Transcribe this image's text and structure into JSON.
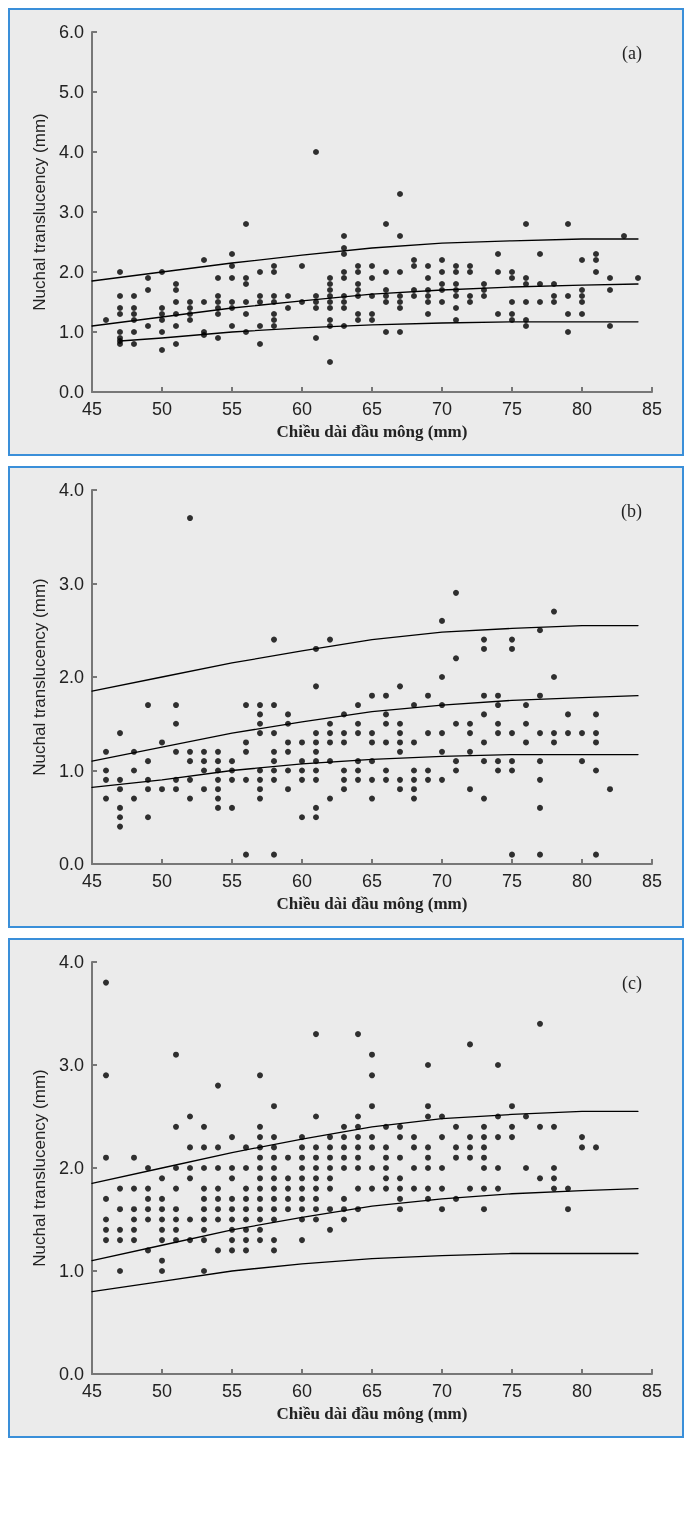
{
  "chart_data": [
    {
      "type": "scatter",
      "annotations": [
        "(a)"
      ],
      "xlabel": "Chiều dài đầu mông (mm)",
      "ylabel": "Nuchal translucency (mm)",
      "xlim": [
        45,
        85
      ],
      "xticks": [
        45,
        50,
        55,
        60,
        65,
        70,
        75,
        80,
        85
      ],
      "ylim": [
        0,
        6
      ],
      "yticks": [
        {
          "value": 0,
          "label": "0.0"
        },
        {
          "value": 1,
          "label": "1.0"
        },
        {
          "value": 2,
          "label": "2.0"
        },
        {
          "value": 3,
          "label": "3.0"
        },
        {
          "value": 4,
          "label": "4.0"
        },
        {
          "value": 5,
          "label": "5.0"
        },
        {
          "value": 6,
          "label": "6.0"
        }
      ],
      "grid": false,
      "marker": "circle",
      "series": [
        {
          "color": "#000000",
          "x": [
            46,
            47,
            47,
            47,
            47,
            47,
            47,
            47,
            47,
            48,
            48,
            48,
            48,
            48,
            48,
            49,
            49,
            49,
            50,
            50,
            50,
            50,
            50,
            50,
            51,
            51,
            51,
            51,
            51,
            51,
            52,
            52,
            52,
            52,
            53,
            53,
            53,
            53,
            54,
            54,
            54,
            54,
            54,
            54,
            55,
            55,
            55,
            55,
            55,
            55,
            56,
            56,
            56,
            56,
            56,
            56,
            57,
            57,
            57,
            57,
            57,
            58,
            58,
            58,
            58,
            58,
            58,
            58,
            59,
            59,
            60,
            60,
            61,
            61,
            61,
            61,
            61,
            62,
            62,
            62,
            62,
            62,
            62,
            62,
            62,
            62,
            63,
            63,
            63,
            63,
            63,
            63,
            63,
            63,
            63,
            64,
            64,
            64,
            64,
            64,
            64,
            64,
            65,
            65,
            65,
            65,
            65,
            66,
            66,
            66,
            66,
            66,
            66,
            67,
            67,
            67,
            67,
            67,
            67,
            67,
            68,
            68,
            68,
            68,
            69,
            69,
            69,
            69,
            69,
            69,
            70,
            70,
            70,
            70,
            70,
            71,
            71,
            71,
            71,
            71,
            71,
            71,
            72,
            72,
            72,
            72,
            73,
            73,
            73,
            74,
            74,
            74,
            75,
            75,
            75,
            75,
            75,
            76,
            76,
            76,
            76,
            76,
            76,
            77,
            77,
            77,
            78,
            78,
            78,
            79,
            79,
            79,
            79,
            80,
            80,
            80,
            80,
            80,
            81,
            81,
            81,
            82,
            82,
            82,
            83,
            84
          ],
          "values": [
            1.2,
            2.0,
            1.6,
            1.4,
            1.3,
            1.0,
            0.9,
            0.85,
            0.8,
            1.6,
            1.4,
            1.3,
            1.2,
            1.0,
            0.8,
            1.9,
            1.7,
            1.1,
            2.0,
            1.4,
            1.3,
            1.2,
            1.0,
            0.7,
            1.8,
            1.7,
            1.5,
            1.3,
            1.1,
            0.8,
            1.5,
            1.4,
            1.3,
            1.2,
            2.2,
            1.5,
            1.0,
            0.95,
            1.9,
            1.6,
            1.5,
            1.4,
            1.3,
            0.9,
            2.3,
            2.1,
            1.9,
            1.5,
            1.4,
            1.1,
            2.8,
            1.9,
            1.8,
            1.5,
            1.3,
            1.0,
            2.0,
            1.6,
            1.5,
            1.1,
            0.8,
            2.1,
            2.0,
            1.6,
            1.5,
            1.3,
            1.2,
            1.1,
            1.6,
            1.4,
            2.1,
            1.5,
            4.0,
            1.6,
            1.5,
            1.4,
            0.9,
            1.9,
            1.8,
            1.7,
            1.6,
            1.5,
            1.4,
            1.2,
            1.1,
            0.5,
            2.6,
            2.4,
            2.3,
            2.0,
            1.9,
            1.6,
            1.5,
            1.4,
            1.1,
            2.1,
            2.0,
            1.8,
            1.7,
            1.6,
            1.3,
            1.2,
            2.1,
            1.9,
            1.6,
            1.3,
            1.2,
            2.8,
            2.0,
            1.7,
            1.6,
            1.5,
            1.0,
            3.3,
            2.6,
            2.0,
            1.6,
            1.5,
            1.4,
            1.0,
            2.2,
            2.1,
            1.7,
            1.6,
            2.1,
            1.9,
            1.7,
            1.6,
            1.5,
            1.3,
            2.2,
            2.0,
            1.8,
            1.7,
            1.5,
            2.1,
            2.0,
            1.8,
            1.7,
            1.6,
            1.4,
            1.2,
            2.1,
            2.0,
            1.6,
            1.5,
            1.8,
            1.7,
            1.6,
            2.3,
            2.0,
            1.3,
            2.0,
            1.9,
            1.5,
            1.3,
            1.2,
            2.8,
            1.9,
            1.8,
            1.5,
            1.2,
            1.1,
            2.3,
            1.8,
            1.5,
            1.8,
            1.6,
            1.5,
            2.8,
            1.6,
            1.3,
            1.0,
            2.2,
            1.7,
            1.6,
            1.5,
            1.3,
            2.3,
            2.2,
            2.0,
            1.9,
            1.7,
            1.1,
            2.6,
            1.9
          ]
        },
        {
          "type": "line",
          "color": "#000000",
          "marker": "none",
          "x": [
            45,
            50,
            55,
            60,
            65,
            70,
            75,
            80,
            84
          ],
          "values": [
            1.85,
            2.0,
            2.15,
            2.28,
            2.4,
            2.48,
            2.52,
            2.55,
            2.55
          ]
        },
        {
          "type": "line",
          "color": "#000000",
          "marker": "none",
          "x": [
            45,
            50,
            55,
            60,
            65,
            70,
            75,
            80,
            84
          ],
          "values": [
            1.1,
            1.25,
            1.4,
            1.52,
            1.63,
            1.7,
            1.75,
            1.78,
            1.8
          ]
        },
        {
          "type": "line",
          "color": "#000000",
          "marker": "none",
          "x": [
            47,
            50,
            55,
            60,
            65,
            70,
            75,
            80,
            84
          ],
          "values": [
            0.85,
            0.9,
            1.0,
            1.07,
            1.12,
            1.15,
            1.17,
            1.17,
            1.17
          ]
        }
      ]
    },
    {
      "type": "scatter",
      "annotations": [
        "(b)"
      ],
      "xlabel": "Chiều dài đầu mông (mm)",
      "ylabel": "Nuchal translucency (mm)",
      "xlim": [
        45,
        85
      ],
      "xticks": [
        45,
        50,
        55,
        60,
        65,
        70,
        75,
        80,
        85
      ],
      "ylim": [
        0,
        4
      ],
      "yticks": [
        {
          "value": 0,
          "label": "0.0"
        },
        {
          "value": 1,
          "label": "1.0"
        },
        {
          "value": 2,
          "label": "2.0"
        },
        {
          "value": 3,
          "label": "3.0"
        },
        {
          "value": 4,
          "label": "4.0"
        }
      ],
      "grid": false,
      "marker": "circle",
      "series": [
        {
          "color": "#000000",
          "x": [
            46,
            46,
            46,
            46,
            47,
            47,
            47,
            47,
            47,
            47,
            48,
            48,
            48,
            49,
            49,
            49,
            49,
            49,
            50,
            50,
            51,
            51,
            51,
            51,
            51,
            52,
            52,
            52,
            52,
            52,
            53,
            53,
            53,
            53,
            54,
            54,
            54,
            54,
            54,
            54,
            54,
            55,
            55,
            55,
            55,
            56,
            56,
            56,
            56,
            56,
            57,
            57,
            57,
            57,
            57,
            57,
            57,
            57,
            58,
            58,
            58,
            58,
            58,
            58,
            58,
            58,
            59,
            59,
            59,
            59,
            59,
            59,
            60,
            60,
            60,
            60,
            60,
            61,
            61,
            61,
            61,
            61,
            61,
            61,
            61,
            61,
            61,
            62,
            62,
            62,
            62,
            62,
            62,
            63,
            63,
            63,
            63,
            63,
            63,
            64,
            64,
            64,
            64,
            64,
            64,
            65,
            65,
            65,
            65,
            65,
            65,
            66,
            66,
            66,
            66,
            66,
            66,
            67,
            67,
            67,
            67,
            67,
            67,
            67,
            68,
            68,
            68,
            68,
            68,
            68,
            69,
            69,
            69,
            69,
            70,
            70,
            70,
            70,
            70,
            70,
            71,
            71,
            71,
            71,
            71,
            72,
            72,
            72,
            72,
            73,
            73,
            73,
            73,
            73,
            73,
            73,
            74,
            74,
            74,
            74,
            74,
            74,
            75,
            75,
            75,
            75,
            75,
            75,
            76,
            76,
            76,
            77,
            77,
            77,
            77,
            77,
            77,
            77,
            78,
            78,
            78,
            78,
            79,
            79,
            80,
            80,
            81,
            81,
            81,
            81,
            81,
            82
          ],
          "values": [
            1.2,
            1.0,
            0.9,
            0.7,
            1.4,
            0.9,
            0.8,
            0.6,
            0.5,
            0.4,
            1.2,
            1.0,
            0.7,
            1.7,
            1.1,
            0.9,
            0.8,
            0.5,
            1.3,
            0.8,
            1.7,
            1.5,
            1.2,
            0.9,
            0.8,
            3.7,
            1.2,
            1.1,
            0.9,
            0.7,
            1.2,
            1.1,
            1.0,
            0.8,
            1.2,
            1.1,
            1.0,
            0.9,
            0.8,
            0.7,
            0.6,
            1.1,
            1.0,
            0.9,
            0.6,
            1.7,
            1.3,
            1.2,
            0.9,
            0.1,
            1.7,
            1.6,
            1.5,
            1.4,
            1.0,
            0.9,
            0.8,
            0.7,
            2.4,
            1.7,
            1.4,
            1.2,
            1.1,
            1.0,
            0.9,
            0.1,
            1.6,
            1.5,
            1.3,
            1.2,
            1.0,
            0.8,
            1.3,
            1.1,
            1.0,
            0.9,
            0.5,
            2.3,
            1.9,
            1.4,
            1.3,
            1.2,
            1.1,
            1.0,
            0.9,
            0.6,
            0.5,
            2.4,
            1.5,
            1.4,
            1.3,
            1.1,
            0.7,
            1.6,
            1.4,
            1.3,
            1.0,
            0.9,
            0.8,
            1.7,
            1.5,
            1.4,
            1.1,
            1.0,
            0.9,
            1.8,
            1.4,
            1.3,
            1.1,
            0.9,
            0.7,
            1.8,
            1.6,
            1.5,
            1.3,
            1.0,
            0.9,
            1.9,
            1.5,
            1.4,
            1.3,
            1.2,
            0.9,
            0.8,
            1.7,
            1.3,
            1.0,
            0.9,
            0.8,
            0.7,
            1.8,
            1.4,
            1.0,
            0.9,
            2.6,
            2.0,
            1.7,
            1.4,
            1.2,
            0.9,
            2.9,
            2.2,
            1.5,
            1.1,
            1.0,
            1.5,
            1.4,
            1.2,
            0.8,
            2.4,
            2.3,
            1.8,
            1.6,
            1.3,
            1.1,
            0.7,
            1.8,
            1.7,
            1.5,
            1.4,
            1.1,
            1.0,
            2.4,
            2.3,
            1.4,
            1.1,
            1.0,
            0.1,
            1.7,
            1.5,
            1.3,
            2.5,
            1.8,
            1.4,
            1.1,
            0.9,
            0.6,
            0.1,
            2.7,
            2.0,
            1.4,
            1.3,
            1.6,
            1.4,
            1.4,
            1.1,
            1.6,
            1.4,
            1.3,
            1.0,
            0.1,
            0.8
          ]
        },
        {
          "type": "line",
          "color": "#000000",
          "marker": "none",
          "x": [
            45,
            50,
            55,
            60,
            65,
            70,
            75,
            80,
            84
          ],
          "values": [
            1.85,
            2.0,
            2.15,
            2.28,
            2.4,
            2.48,
            2.52,
            2.55,
            2.55
          ]
        },
        {
          "type": "line",
          "color": "#000000",
          "marker": "none",
          "x": [
            45,
            50,
            55,
            60,
            65,
            70,
            75,
            80,
            84
          ],
          "values": [
            1.1,
            1.25,
            1.4,
            1.52,
            1.63,
            1.7,
            1.75,
            1.78,
            1.8
          ]
        },
        {
          "type": "line",
          "color": "#000000",
          "marker": "none",
          "x": [
            45,
            50,
            55,
            60,
            65,
            70,
            75,
            80,
            84
          ],
          "values": [
            0.82,
            0.9,
            1.0,
            1.07,
            1.12,
            1.15,
            1.17,
            1.17,
            1.17
          ]
        }
      ]
    },
    {
      "type": "scatter",
      "annotations": [
        "(c)"
      ],
      "xlabel": "Chiều dài đầu mông (mm)",
      "ylabel": "Nuchal translucency (mm)",
      "xlim": [
        45,
        85
      ],
      "xticks": [
        45,
        50,
        55,
        60,
        65,
        70,
        75,
        80,
        85
      ],
      "ylim": [
        0,
        4
      ],
      "yticks": [
        {
          "value": 0,
          "label": "0.0"
        },
        {
          "value": 1,
          "label": "1.0"
        },
        {
          "value": 2,
          "label": "2.0"
        },
        {
          "value": 3,
          "label": "3.0"
        },
        {
          "value": 4,
          "label": "4.0"
        }
      ],
      "grid": false,
      "marker": "circle",
      "series": [
        {
          "color": "#000000",
          "x": [
            46,
            46,
            46,
            46,
            46,
            46,
            46,
            47,
            47,
            47,
            47,
            47,
            48,
            48,
            48,
            48,
            48,
            48,
            49,
            49,
            49,
            49,
            49,
            49,
            50,
            50,
            50,
            50,
            50,
            50,
            50,
            50,
            51,
            51,
            51,
            51,
            51,
            51,
            51,
            51,
            52,
            52,
            52,
            52,
            52,
            52,
            53,
            53,
            53,
            53,
            53,
            53,
            53,
            53,
            53,
            53,
            54,
            54,
            54,
            54,
            54,
            54,
            54,
            54,
            55,
            55,
            55,
            55,
            55,
            55,
            55,
            55,
            55,
            56,
            56,
            56,
            56,
            56,
            56,
            56,
            56,
            56,
            57,
            57,
            57,
            57,
            57,
            57,
            57,
            57,
            57,
            57,
            57,
            57,
            57,
            58,
            58,
            58,
            58,
            58,
            58,
            58,
            58,
            58,
            58,
            58,
            58,
            59,
            59,
            59,
            59,
            59,
            60,
            60,
            60,
            60,
            60,
            60,
            60,
            60,
            60,
            60,
            61,
            61,
            61,
            61,
            61,
            61,
            61,
            61,
            61,
            61,
            62,
            62,
            62,
            62,
            62,
            62,
            62,
            62,
            63,
            63,
            63,
            63,
            63,
            63,
            63,
            63,
            64,
            64,
            64,
            64,
            64,
            64,
            64,
            64,
            64,
            65,
            65,
            65,
            65,
            65,
            65,
            65,
            66,
            66,
            66,
            66,
            66,
            66,
            67,
            67,
            67,
            67,
            67,
            67,
            67,
            68,
            68,
            68,
            68,
            69,
            69,
            69,
            69,
            69,
            69,
            69,
            69,
            70,
            70,
            70,
            70,
            70,
            71,
            71,
            71,
            71,
            72,
            72,
            72,
            72,
            72,
            73,
            73,
            73,
            73,
            73,
            73,
            73,
            74,
            74,
            74,
            74,
            74,
            75,
            75,
            75,
            76,
            76,
            77,
            77,
            77,
            78,
            78,
            78,
            78,
            79,
            79,
            80,
            80,
            81
          ],
          "values": [
            3.8,
            2.9,
            2.1,
            1.7,
            1.5,
            1.4,
            1.3,
            1.8,
            1.6,
            1.4,
            1.3,
            1.0,
            2.1,
            1.8,
            1.6,
            1.5,
            1.4,
            1.3,
            2.0,
            1.8,
            1.7,
            1.6,
            1.5,
            1.2,
            1.9,
            1.7,
            1.6,
            1.5,
            1.4,
            1.3,
            1.1,
            1.0,
            3.1,
            2.4,
            2.0,
            1.8,
            1.6,
            1.5,
            1.4,
            1.3,
            2.5,
            2.2,
            2.0,
            1.9,
            1.5,
            1.3,
            2.4,
            2.2,
            2.0,
            1.8,
            1.7,
            1.6,
            1.5,
            1.4,
            1.3,
            1.0,
            2.8,
            2.2,
            2.0,
            1.8,
            1.7,
            1.6,
            1.5,
            1.2,
            2.3,
            2.0,
            1.9,
            1.7,
            1.6,
            1.5,
            1.4,
            1.3,
            1.2,
            2.2,
            2.0,
            1.8,
            1.7,
            1.6,
            1.5,
            1.4,
            1.3,
            1.2,
            2.9,
            2.4,
            2.3,
            2.2,
            2.1,
            2.0,
            1.9,
            1.8,
            1.7,
            1.6,
            1.5,
            1.4,
            1.3,
            2.6,
            2.3,
            2.2,
            2.1,
            2.0,
            1.9,
            1.8,
            1.7,
            1.6,
            1.5,
            1.3,
            1.2,
            2.1,
            1.9,
            1.8,
            1.7,
            1.6,
            2.3,
            2.2,
            2.1,
            2.0,
            1.9,
            1.8,
            1.7,
            1.6,
            1.5,
            1.3,
            3.3,
            2.5,
            2.2,
            2.1,
            2.0,
            1.9,
            1.8,
            1.7,
            1.6,
            1.5,
            2.3,
            2.2,
            2.1,
            2.0,
            1.9,
            1.8,
            1.6,
            1.4,
            2.4,
            2.3,
            2.2,
            2.1,
            2.0,
            1.7,
            1.6,
            1.5,
            3.3,
            2.5,
            2.4,
            2.3,
            2.2,
            2.1,
            2.0,
            1.8,
            1.6,
            3.1,
            2.9,
            2.6,
            2.3,
            2.2,
            2.0,
            1.8,
            2.4,
            2.2,
            2.1,
            2.0,
            1.9,
            1.8,
            2.4,
            2.3,
            2.1,
            1.9,
            1.8,
            1.7,
            1.6,
            2.3,
            2.2,
            2.0,
            1.8,
            3.0,
            2.6,
            2.5,
            2.2,
            2.1,
            2.0,
            1.8,
            1.7,
            2.5,
            2.3,
            2.0,
            1.8,
            1.6,
            2.4,
            2.2,
            2.1,
            1.7,
            3.2,
            2.3,
            2.2,
            2.1,
            1.8,
            2.4,
            2.3,
            2.2,
            2.1,
            2.0,
            1.8,
            1.6,
            3.0,
            2.5,
            2.3,
            2.0,
            1.8,
            2.6,
            2.4,
            2.3,
            2.5,
            2.0,
            3.4,
            2.4,
            1.9,
            2.4,
            2.0,
            1.9,
            1.8,
            1.8,
            1.6,
            2.3,
            2.2,
            2.2
          ]
        },
        {
          "type": "line",
          "color": "#000000",
          "marker": "none",
          "x": [
            45,
            50,
            55,
            60,
            65,
            70,
            75,
            80,
            84
          ],
          "values": [
            1.85,
            2.0,
            2.15,
            2.28,
            2.4,
            2.48,
            2.52,
            2.55,
            2.55
          ]
        },
        {
          "type": "line",
          "color": "#000000",
          "marker": "none",
          "x": [
            45,
            50,
            55,
            60,
            65,
            70,
            75,
            80,
            84
          ],
          "values": [
            1.1,
            1.25,
            1.4,
            1.52,
            1.63,
            1.7,
            1.75,
            1.78,
            1.8
          ]
        },
        {
          "type": "line",
          "color": "#000000",
          "marker": "none",
          "x": [
            45,
            50,
            55,
            60,
            65,
            70,
            75,
            80,
            84
          ],
          "values": [
            0.8,
            0.9,
            1.0,
            1.07,
            1.12,
            1.15,
            1.17,
            1.17,
            1.17
          ]
        }
      ]
    }
  ]
}
